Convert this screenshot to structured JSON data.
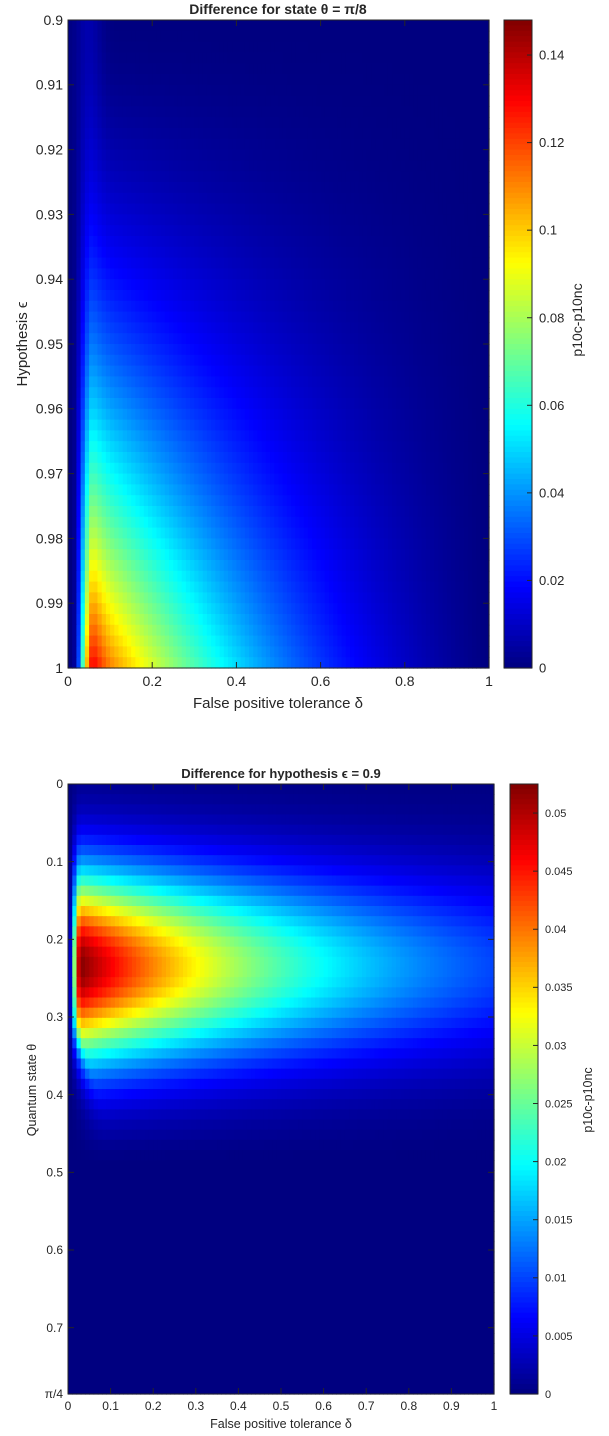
{
  "chart_data": [
    {
      "type": "heatmap",
      "title": "Difference for state θ = π/8",
      "xlabel": "False positive tolerance δ",
      "ylabel": "Hypothesis ϵ",
      "colorbar_label": "p10c-p10nc",
      "colormap": "jet",
      "x_range": [
        0,
        1
      ],
      "y_range": [
        0.9,
        1
      ],
      "y_reversed": true,
      "x_ticks": [
        "0",
        "0.2",
        "0.4",
        "0.6",
        "0.8",
        "1"
      ],
      "x_tick_values": [
        0,
        0.2,
        0.4,
        0.6,
        0.8,
        1
      ],
      "y_ticks": [
        "0.9",
        "0.91",
        "0.92",
        "0.93",
        "0.94",
        "0.95",
        "0.96",
        "0.97",
        "0.98",
        "0.99",
        "1"
      ],
      "y_tick_values": [
        0.9,
        0.91,
        0.92,
        0.93,
        0.94,
        0.95,
        0.96,
        0.97,
        0.98,
        0.99,
        1
      ],
      "color_range": [
        0,
        0.148
      ],
      "colorbar_ticks": [
        "0",
        "0.02",
        "0.04",
        "0.06",
        "0.08",
        "0.1",
        "0.12",
        "0.14"
      ],
      "colorbar_tick_values": [
        0,
        0.02,
        0.04,
        0.06,
        0.08,
        0.1,
        0.12,
        0.14
      ],
      "peak": {
        "x": 0.1,
        "y": 1,
        "value": 0.148
      },
      "grid": false
    },
    {
      "type": "heatmap",
      "title": "Difference for hypothesis ϵ = 0.9",
      "xlabel": "False positive tolerance δ",
      "ylabel": "Quantum state θ",
      "colorbar_label": "p10c-p10nc",
      "colormap": "jet",
      "x_range": [
        0,
        1
      ],
      "y_range": [
        0,
        0.7854
      ],
      "y_reversed": true,
      "x_ticks": [
        "0",
        "0.1",
        "0.2",
        "0.3",
        "0.4",
        "0.5",
        "0.6",
        "0.7",
        "0.8",
        "0.9",
        "1"
      ],
      "x_tick_values": [
        0,
        0.1,
        0.2,
        0.3,
        0.4,
        0.5,
        0.6,
        0.7,
        0.8,
        0.9,
        1
      ],
      "y_ticks": [
        "0",
        "0.1",
        "0.2",
        "0.3",
        "0.4",
        "0.5",
        "0.6",
        "0.7",
        "π/4"
      ],
      "y_tick_values": [
        0,
        0.1,
        0.2,
        0.3,
        0.4,
        0.5,
        0.6,
        0.7,
        0.7854
      ],
      "color_range": [
        0,
        0.0525
      ],
      "colorbar_ticks": [
        "0",
        "0.005",
        "0.01",
        "0.015",
        "0.02",
        "0.025",
        "0.03",
        "0.035",
        "0.04",
        "0.045",
        "0.05"
      ],
      "colorbar_tick_values": [
        0,
        0.005,
        0.01,
        0.015,
        0.02,
        0.025,
        0.03,
        0.035,
        0.04,
        0.045,
        0.05
      ],
      "peak": {
        "x": 0.04,
        "y": 0.23,
        "value": 0.0525
      },
      "grid": false
    }
  ]
}
